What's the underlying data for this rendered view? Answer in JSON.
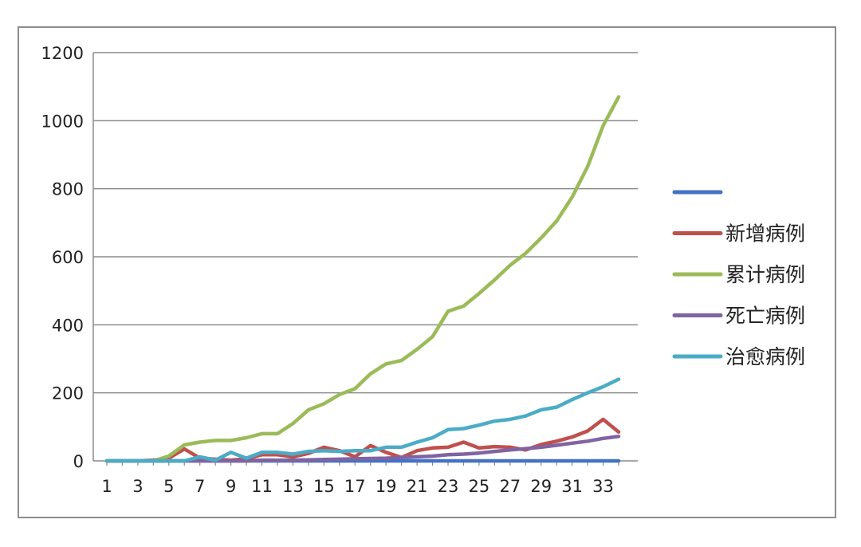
{
  "chart_data": {
    "type": "line",
    "title": "",
    "xlabel": "",
    "ylabel": "",
    "ylim": [
      0,
      1200
    ],
    "yticks": [
      0,
      200,
      400,
      600,
      800,
      1000,
      1200
    ],
    "grid": true,
    "legend_position": "right",
    "x": [
      1,
      2,
      3,
      4,
      5,
      6,
      7,
      8,
      9,
      10,
      11,
      12,
      13,
      14,
      15,
      16,
      17,
      18,
      19,
      20,
      21,
      22,
      23,
      24,
      25,
      26,
      27,
      28,
      29,
      30,
      31,
      32,
      33,
      34
    ],
    "xtick_labels": [
      "1",
      "3",
      "5",
      "7",
      "9",
      "11",
      "13",
      "15",
      "17",
      "19",
      "21",
      "23",
      "25",
      "27",
      "29",
      "31",
      "33"
    ],
    "series": [
      {
        "name": "",
        "color": "#4472C4",
        "values": [
          0,
          0,
          0,
          0,
          0,
          0,
          0,
          0,
          0,
          0,
          0,
          0,
          0,
          0,
          0,
          0,
          0,
          0,
          0,
          0,
          0,
          0,
          0,
          0,
          0,
          0,
          0,
          0,
          0,
          0,
          0,
          0,
          0,
          0
        ]
      },
      {
        "name": "新增病例",
        "color": "#C0504D",
        "values": [
          0,
          0,
          0,
          2,
          8,
          35,
          8,
          5,
          2,
          6,
          18,
          18,
          12,
          22,
          40,
          30,
          12,
          45,
          25,
          10,
          30,
          38,
          40,
          55,
          38,
          42,
          40,
          32,
          48,
          58,
          70,
          88,
          122,
          85
        ]
      },
      {
        "name": "累计病例",
        "color": "#9BBB59",
        "values": [
          0,
          0,
          0,
          0,
          14,
          47,
          55,
          60,
          60,
          68,
          80,
          80,
          110,
          150,
          168,
          195,
          212,
          256,
          285,
          295,
          328,
          365,
          440,
          455,
          492,
          532,
          575,
          610,
          655,
          705,
          775,
          865,
          985,
          1070
        ]
      },
      {
        "name": "死亡病例",
        "color": "#8064A2",
        "values": [
          0,
          0,
          0,
          0,
          0,
          0,
          0,
          0,
          0,
          0,
          2,
          2,
          2,
          3,
          4,
          5,
          6,
          7,
          8,
          10,
          12,
          14,
          18,
          20,
          23,
          28,
          32,
          36,
          40,
          46,
          52,
          58,
          66,
          72
        ]
      },
      {
        "name": "治愈病例",
        "color": "#4BACC6",
        "values": [
          0,
          0,
          0,
          0,
          0,
          0,
          12,
          2,
          25,
          8,
          25,
          25,
          20,
          28,
          30,
          28,
          30,
          30,
          40,
          40,
          55,
          68,
          92,
          95,
          105,
          117,
          122,
          132,
          150,
          158,
          180,
          200,
          218,
          240
        ]
      }
    ]
  }
}
